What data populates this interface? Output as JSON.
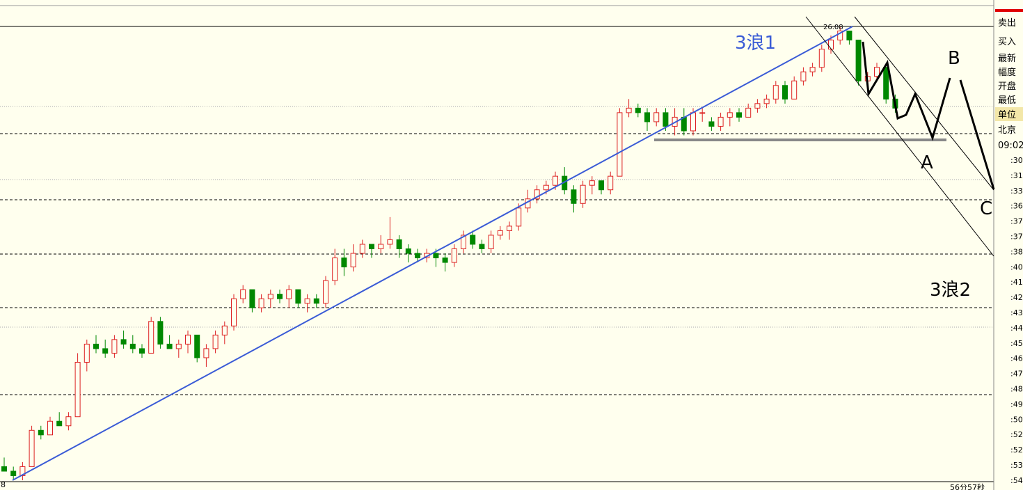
{
  "annotations": {
    "wave1": "3浪1",
    "wave2": "3浪2",
    "a": "A",
    "b": "B",
    "c": "C",
    "high": "26.08"
  },
  "side_panel": {
    "labels": [
      "卖出",
      "买入",
      "最新",
      "幅度",
      "开盘",
      "最低",
      "单位",
      "北京",
      "09:02"
    ],
    "times": [
      ":30",
      ":31",
      ":33",
      ":36",
      ":37",
      ":37",
      ":38",
      ":40",
      ":41",
      ":42",
      ":43",
      ":44",
      ":45",
      ":46",
      ":47",
      ":48",
      ":49",
      ":50",
      ":52",
      ":52",
      ":53",
      ":54"
    ]
  },
  "footer": {
    "left": "8",
    "right": "56分57秒"
  },
  "chart_data": {
    "type": "candlestick",
    "ylim": [
      0,
      100
    ],
    "candles": [
      [
        3,
        5,
        2,
        2
      ],
      [
        2,
        3,
        0,
        1
      ],
      [
        1,
        4,
        0,
        3
      ],
      [
        3,
        12,
        3,
        11
      ],
      [
        11,
        12,
        9,
        10
      ],
      [
        10,
        14,
        10,
        13
      ],
      [
        13,
        15,
        12,
        12
      ],
      [
        12,
        15,
        11,
        14
      ],
      [
        14,
        28,
        14,
        26
      ],
      [
        26,
        31,
        24,
        30
      ],
      [
        30,
        32,
        28,
        29
      ],
      [
        29,
        31,
        27,
        28
      ],
      [
        28,
        32,
        27,
        31
      ],
      [
        31,
        33,
        29,
        30
      ],
      [
        30,
        32,
        28,
        29
      ],
      [
        29,
        30,
        27,
        28
      ],
      [
        28,
        36,
        28,
        35
      ],
      [
        35,
        36,
        29,
        30
      ],
      [
        30,
        32,
        29,
        29
      ],
      [
        29,
        31,
        27,
        30
      ],
      [
        30,
        33,
        28,
        32
      ],
      [
        32,
        32,
        26,
        27
      ],
      [
        27,
        30,
        25,
        29
      ],
      [
        29,
        33,
        28,
        32
      ],
      [
        32,
        35,
        30,
        34
      ],
      [
        34,
        41,
        33,
        40
      ],
      [
        40,
        43,
        39,
        42
      ],
      [
        42,
        42,
        37,
        38
      ],
      [
        38,
        41,
        37,
        40
      ],
      [
        40,
        42,
        38,
        41
      ],
      [
        41,
        42,
        39,
        40
      ],
      [
        40,
        43,
        38,
        42
      ],
      [
        42,
        42,
        38,
        39
      ],
      [
        39,
        41,
        37,
        40
      ],
      [
        40,
        41,
        38,
        39
      ],
      [
        39,
        45,
        38,
        44
      ],
      [
        44,
        51,
        43,
        49
      ],
      [
        49,
        51,
        45,
        47
      ],
      [
        47,
        52,
        46,
        50
      ],
      [
        50,
        53,
        49,
        52
      ],
      [
        52,
        52,
        49,
        51
      ],
      [
        51,
        54,
        50,
        52
      ],
      [
        52,
        58,
        51,
        53
      ],
      [
        53,
        54,
        49,
        51
      ],
      [
        51,
        52,
        48,
        50
      ],
      [
        50,
        51,
        48,
        49
      ],
      [
        49,
        51,
        48,
        50
      ],
      [
        50,
        51,
        47,
        49
      ],
      [
        49,
        50,
        46,
        48
      ],
      [
        48,
        52,
        47,
        51
      ],
      [
        51,
        55,
        50,
        54
      ],
      [
        54,
        55,
        51,
        52
      ],
      [
        52,
        53,
        50,
        51
      ],
      [
        51,
        55,
        50,
        54
      ],
      [
        54,
        56,
        53,
        55
      ],
      [
        55,
        57,
        53,
        56
      ],
      [
        56,
        61,
        55,
        60
      ],
      [
        60,
        64,
        59,
        62
      ],
      [
        62,
        65,
        61,
        64
      ],
      [
        64,
        66,
        63,
        65
      ],
      [
        65,
        68,
        64,
        67
      ],
      [
        67,
        69,
        63,
        64
      ],
      [
        64,
        65,
        59,
        61
      ],
      [
        61,
        66,
        60,
        65
      ],
      [
        65,
        67,
        63,
        66
      ],
      [
        66,
        66,
        63,
        64
      ],
      [
        64,
        68,
        63,
        67
      ],
      [
        67,
        82,
        67,
        81
      ],
      [
        81,
        84,
        80,
        82
      ],
      [
        82,
        83,
        80,
        81
      ],
      [
        81,
        82,
        77,
        79
      ],
      [
        79,
        82,
        78,
        81
      ],
      [
        81,
        82,
        77,
        78
      ],
      [
        78,
        82,
        76,
        80
      ],
      [
        80,
        82,
        76,
        77
      ],
      [
        77,
        82,
        76,
        81
      ],
      [
        81,
        82,
        79,
        81
      ],
      [
        79,
        80,
        77,
        78
      ],
      [
        78,
        81,
        77,
        80
      ],
      [
        80,
        82,
        78,
        81
      ],
      [
        81,
        82,
        79,
        80
      ],
      [
        80,
        83,
        80,
        82
      ],
      [
        82,
        84,
        81,
        83
      ],
      [
        83,
        85,
        82,
        84
      ],
      [
        84,
        88,
        83,
        87
      ],
      [
        87,
        88,
        83,
        84
      ],
      [
        84,
        89,
        84,
        88
      ],
      [
        88,
        91,
        87,
        90
      ],
      [
        90,
        92,
        89,
        91
      ],
      [
        91,
        96,
        90,
        95
      ],
      [
        95,
        98,
        94,
        97
      ],
      [
        97,
        100,
        96,
        99
      ],
      [
        99,
        99,
        96,
        97
      ],
      [
        97,
        97,
        87,
        88
      ],
      [
        88,
        90,
        86,
        89
      ],
      [
        89,
        92,
        88,
        91
      ],
      [
        91,
        91,
        83,
        84
      ],
      [
        84,
        85,
        81,
        82
      ]
    ]
  }
}
